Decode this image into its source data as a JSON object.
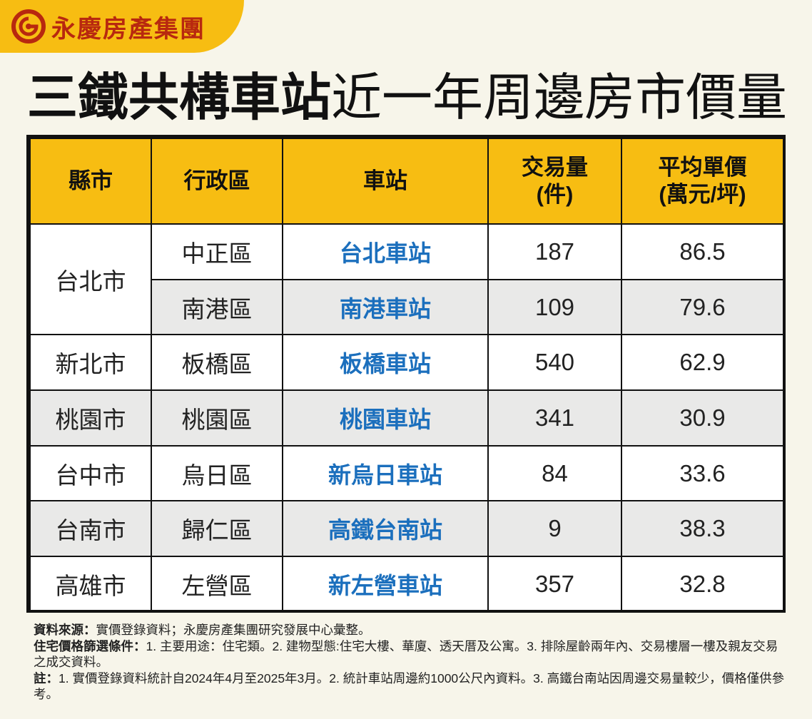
{
  "brand": {
    "name": "永慶房產集團",
    "color": "#b8280f",
    "accent": "#f7bd12"
  },
  "title": {
    "bold": "三鐵共構車站",
    "light": "近一年周邊房市價量"
  },
  "table": {
    "headers": {
      "county": "縣市",
      "district": "行政區",
      "station": "車站",
      "volume_1": "交易量",
      "volume_2": "(件)",
      "price_1": "平均單價",
      "price_2": "(萬元/坪)"
    },
    "rows": [
      {
        "county": "台北市",
        "district": "中正區",
        "station": "台北車站",
        "volume": "187",
        "price": "86.5"
      },
      {
        "county": "",
        "district": "南港區",
        "station": "南港車站",
        "volume": "109",
        "price": "79.6"
      },
      {
        "county": "新北市",
        "district": "板橋區",
        "station": "板橋車站",
        "volume": "540",
        "price": "62.9"
      },
      {
        "county": "桃園市",
        "district": "桃園區",
        "station": "桃園車站",
        "volume": "341",
        "price": "30.9"
      },
      {
        "county": "台中市",
        "district": "烏日區",
        "station": "新烏日車站",
        "volume": "84",
        "price": "33.6"
      },
      {
        "county": "台南市",
        "district": "歸仁區",
        "station": "高鐵台南站",
        "volume": "9",
        "price": "38.3"
      },
      {
        "county": "高雄市",
        "district": "左營區",
        "station": "新左營車站",
        "volume": "357",
        "price": "32.8"
      }
    ],
    "colors": {
      "header_bg": "#f7bd12",
      "station_text": "#1b6fbd",
      "alt_row": "#e9e9e8"
    }
  },
  "notes": {
    "source_key": "資料來源：",
    "source_text": "實價登錄資料；永慶房產集團研究發展中心彙整。",
    "filter_key": "住宅價格篩選條件：",
    "filter_text": "1. 主要用途：住宅類。2. 建物型態:住宅大樓、華廈、透天厝及公寓。3. 排除屋齡兩年內、交易樓層一樓及親友交易之成交資料。",
    "note_key": "註：",
    "note_text": "1. 實價登錄資料統計自2024年4月至2025年3月。2. 統計車站周邊約1000公尺內資料。3. 高鐵台南站因周邊交易量較少，價格僅供參考。"
  }
}
